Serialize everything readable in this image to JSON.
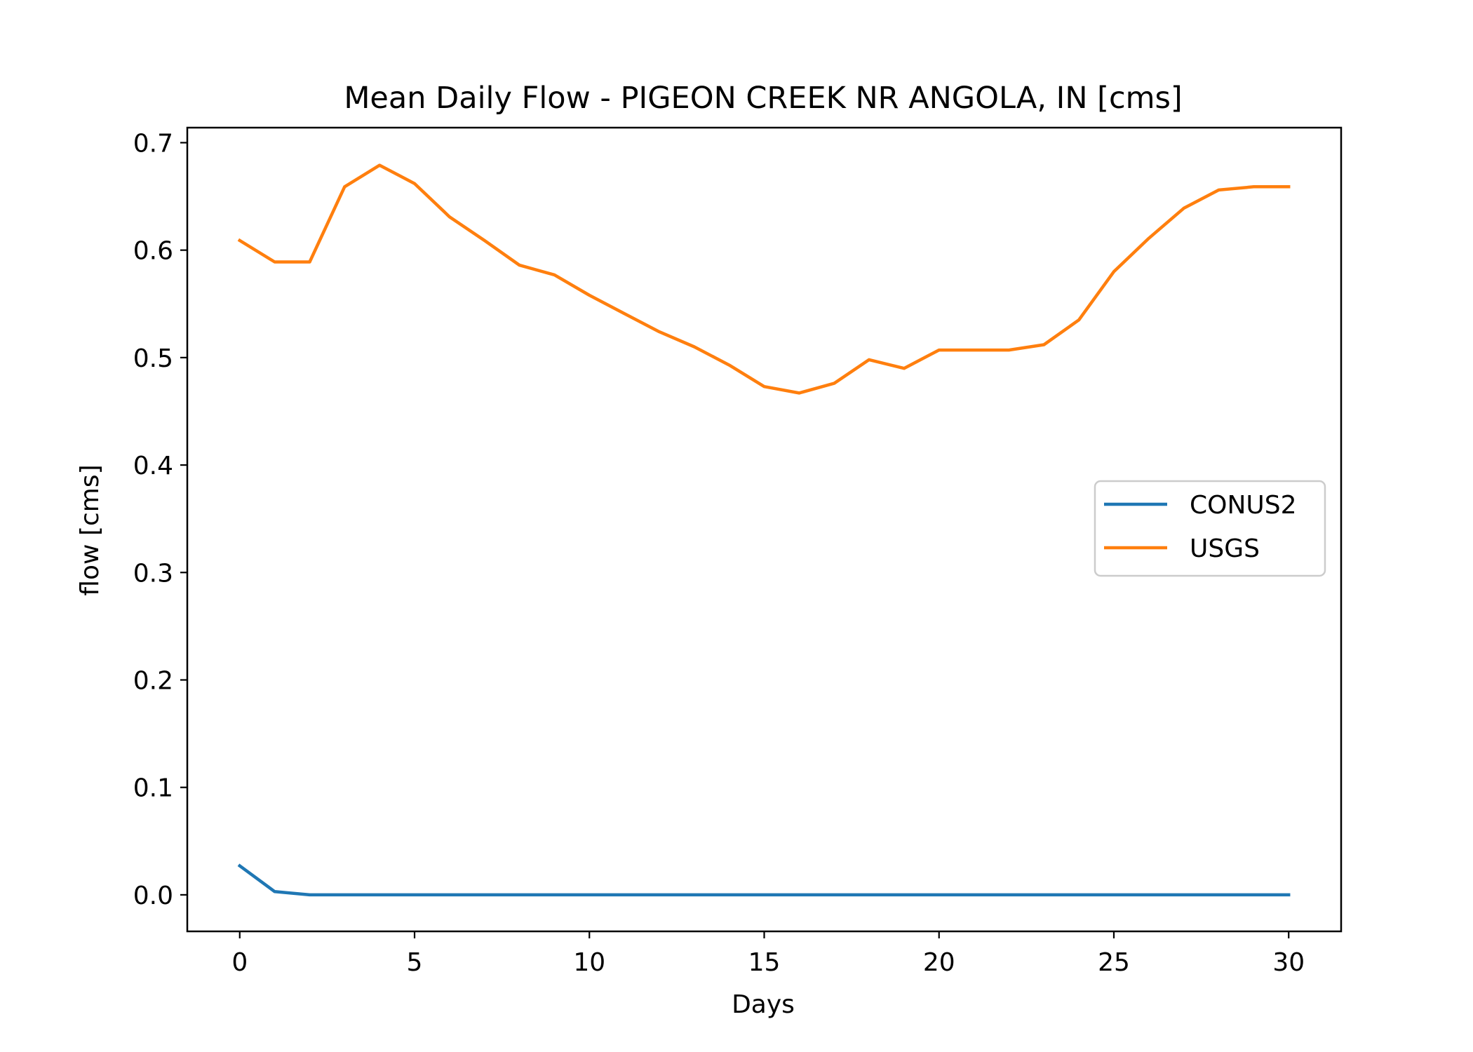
{
  "chart_data": {
    "type": "line",
    "title": "Mean Daily Flow - PIGEON CREEK NR ANGOLA, IN [cms]",
    "xlabel": "Days",
    "ylabel": "flow [cms]",
    "xlim": [
      -1.5,
      31.5
    ],
    "ylim": [
      -0.034,
      0.714
    ],
    "xticks": [
      0,
      5,
      10,
      15,
      20,
      25,
      30
    ],
    "xtick_labels": [
      "0",
      "5",
      "10",
      "15",
      "20",
      "25",
      "30"
    ],
    "yticks": [
      0.0,
      0.1,
      0.2,
      0.3,
      0.4,
      0.5,
      0.6,
      0.7
    ],
    "ytick_labels": [
      "0.0",
      "0.1",
      "0.2",
      "0.3",
      "0.4",
      "0.5",
      "0.6",
      "0.7"
    ],
    "grid": false,
    "legend_position": "center-right",
    "x": [
      0,
      1,
      2,
      3,
      4,
      5,
      6,
      7,
      8,
      9,
      10,
      11,
      12,
      13,
      14,
      15,
      16,
      17,
      18,
      19,
      20,
      21,
      22,
      23,
      24,
      25,
      26,
      27,
      28,
      29,
      30
    ],
    "series": [
      {
        "name": "CONUS2",
        "color": "#1f77b4",
        "values": [
          0.027,
          0.003,
          0.0,
          0.0,
          0.0,
          0.0,
          0.0,
          0.0,
          0.0,
          0.0,
          0.0,
          0.0,
          0.0,
          0.0,
          0.0,
          0.0,
          0.0,
          0.0,
          0.0,
          0.0,
          0.0,
          0.0,
          0.0,
          0.0,
          0.0,
          0.0,
          0.0,
          0.0,
          0.0,
          0.0,
          0.0
        ]
      },
      {
        "name": "USGS",
        "color": "#ff7f0e",
        "values": [
          0.609,
          0.589,
          0.589,
          0.659,
          0.679,
          0.662,
          0.631,
          0.609,
          0.586,
          0.577,
          0.558,
          0.541,
          0.524,
          0.51,
          0.493,
          0.473,
          0.467,
          0.476,
          0.498,
          0.49,
          0.507,
          0.507,
          0.507,
          0.512,
          0.535,
          0.58,
          0.611,
          0.639,
          0.656,
          0.659,
          0.659
        ]
      }
    ]
  }
}
